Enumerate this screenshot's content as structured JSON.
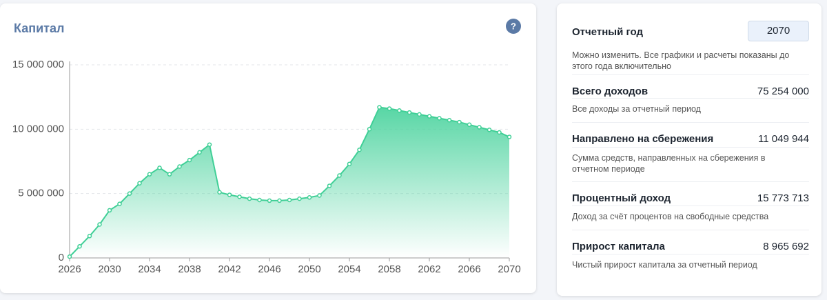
{
  "chart_data": {
    "type": "area",
    "title": "Капитал",
    "help": "?",
    "x": [
      2026,
      2027,
      2028,
      2029,
      2030,
      2031,
      2032,
      2033,
      2034,
      2035,
      2036,
      2037,
      2038,
      2039,
      2040,
      2041,
      2042,
      2043,
      2044,
      2045,
      2046,
      2047,
      2048,
      2049,
      2050,
      2051,
      2052,
      2053,
      2054,
      2055,
      2056,
      2057,
      2058,
      2059,
      2060,
      2061,
      2062,
      2063,
      2064,
      2065,
      2066,
      2067,
      2068,
      2069,
      2070
    ],
    "series": [
      {
        "color": "#3fcf96",
        "values": [
          100000,
          900000,
          1700000,
          2600000,
          3700000,
          4200000,
          5000000,
          5800000,
          6500000,
          7000000,
          6500000,
          7100000,
          7600000,
          8200000,
          8800000,
          5100000,
          4900000,
          4750000,
          4600000,
          4500000,
          4450000,
          4450000,
          4500000,
          4600000,
          4700000,
          4850000,
          5600000,
          6400000,
          7300000,
          8400000,
          10000000,
          11700000,
          11600000,
          11450000,
          11300000,
          11150000,
          11000000,
          10850000,
          10700000,
          10550000,
          10350000,
          10150000,
          9950000,
          9750000,
          9400000
        ]
      }
    ],
    "xlim": [
      2026,
      2070
    ],
    "xticks": [
      2026,
      2030,
      2034,
      2038,
      2042,
      2046,
      2050,
      2054,
      2058,
      2062,
      2066,
      2070
    ],
    "ylim": [
      0,
      15000000
    ],
    "yticks": [
      0,
      {
        "value": 5000000,
        "label": "5 000 000"
      },
      {
        "value": 10000000,
        "label": "10 000 000"
      },
      {
        "value": 15000000,
        "label": "15 000 000"
      }
    ],
    "grid": true
  },
  "panel": {
    "year_label": "Отчетный год",
    "year_value": "2070",
    "year_hint": "Можно изменить. Все графики и расчеты показаны до этого года включительно",
    "items": [
      {
        "label": "Всего доходов",
        "value": "75 254 000",
        "hint": "Все доходы за отчетный период"
      },
      {
        "label": "Направлено на сбережения",
        "value": "11 049 944",
        "hint": "Сумма средств, направленных на сбережения в отчетном периоде"
      },
      {
        "label": "Процентный доход",
        "value": "15 773 713",
        "hint": "Доход за счёт процентов на свободные средства"
      },
      {
        "label": "Прирост капитала",
        "value": "8 965 692",
        "hint": "Чистый прирост капитала за отчетный период"
      }
    ]
  }
}
